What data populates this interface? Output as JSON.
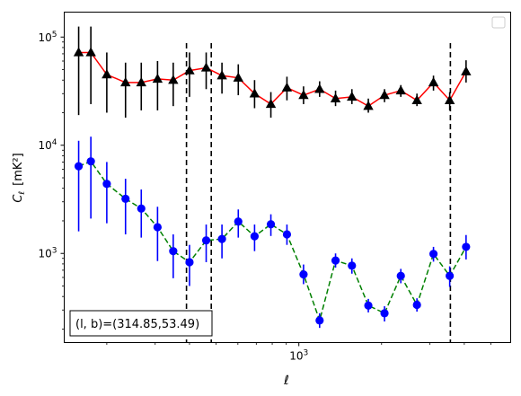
{
  "chart_data": {
    "type": "scatter",
    "xscale": "log",
    "yscale": "log",
    "xlim": [
      140,
      5900
    ],
    "ylim": [
      150,
      170000
    ],
    "xlabel": "ℓ",
    "ylabel_main": "C",
    "ylabel_sub": "ℓ",
    "ylabel_unit": "[mK²]",
    "x_ticks": [
      {
        "value": 1000,
        "base": "10",
        "exp": "3"
      }
    ],
    "y_ticks": [
      {
        "value": 1000,
        "base": "10",
        "exp": "3"
      },
      {
        "value": 10000,
        "base": "10",
        "exp": "4"
      },
      {
        "value": 100000,
        "base": "10",
        "exp": "5"
      }
    ],
    "vlines": [
      390,
      480,
      3560
    ],
    "annotation": "(l, b)=(314.85,53.49)",
    "series": [
      {
        "marker": "triangle",
        "color": "#000000",
        "line_color": "#ff0000",
        "line_style": "solid",
        "points": [
          {
            "x": 158,
            "y": 72000,
            "lo": 19000,
            "hi": 125000
          },
          {
            "x": 175,
            "y": 72000,
            "lo": 24000,
            "hi": 125000
          },
          {
            "x": 200,
            "y": 45000,
            "lo": 20000,
            "hi": 72000
          },
          {
            "x": 234,
            "y": 38000,
            "lo": 18000,
            "hi": 58000
          },
          {
            "x": 267,
            "y": 38000,
            "lo": 21000,
            "hi": 58000
          },
          {
            "x": 306,
            "y": 41000,
            "lo": 21000,
            "hi": 60000
          },
          {
            "x": 349,
            "y": 40000,
            "lo": 23000,
            "hi": 58000
          },
          {
            "x": 400,
            "y": 49000,
            "lo": 28000,
            "hi": 72000
          },
          {
            "x": 460,
            "y": 52000,
            "lo": 33000,
            "hi": 72000
          },
          {
            "x": 525,
            "y": 44000,
            "lo": 30000,
            "hi": 58000
          },
          {
            "x": 602,
            "y": 42000,
            "lo": 29000,
            "hi": 56000
          },
          {
            "x": 690,
            "y": 30000,
            "lo": 22000,
            "hi": 40000
          },
          {
            "x": 791,
            "y": 24000,
            "lo": 18000,
            "hi": 31000
          },
          {
            "x": 905,
            "y": 34000,
            "lo": 26000,
            "hi": 43000
          },
          {
            "x": 1040,
            "y": 29000,
            "lo": 24000,
            "hi": 35000
          },
          {
            "x": 1190,
            "y": 33000,
            "lo": 28000,
            "hi": 39000
          },
          {
            "x": 1360,
            "y": 27000,
            "lo": 23000,
            "hi": 32000
          },
          {
            "x": 1560,
            "y": 28000,
            "lo": 24000,
            "hi": 33000
          },
          {
            "x": 1790,
            "y": 23000,
            "lo": 20000,
            "hi": 27000
          },
          {
            "x": 2050,
            "y": 29000,
            "lo": 25000,
            "hi": 33000
          },
          {
            "x": 2350,
            "y": 32000,
            "lo": 28000,
            "hi": 36000
          },
          {
            "x": 2690,
            "y": 26000,
            "lo": 23000,
            "hi": 30000
          },
          {
            "x": 3090,
            "y": 38000,
            "lo": 32000,
            "hi": 44000
          },
          {
            "x": 3540,
            "y": 26000,
            "lo": 21000,
            "hi": 31000
          },
          {
            "x": 4060,
            "y": 48000,
            "lo": 38000,
            "hi": 61000
          }
        ]
      },
      {
        "marker": "circle",
        "color": "#0000ff",
        "line_color": "#008000",
        "line_style": "dashed",
        "points": [
          {
            "x": 158,
            "y": 6400,
            "lo": 1600,
            "hi": 11000
          },
          {
            "x": 175,
            "y": 7100,
            "lo": 2100,
            "hi": 12000
          },
          {
            "x": 200,
            "y": 4400,
            "lo": 1900,
            "hi": 7000
          },
          {
            "x": 234,
            "y": 3200,
            "lo": 1500,
            "hi": 4900
          },
          {
            "x": 267,
            "y": 2600,
            "lo": 1400,
            "hi": 3900
          },
          {
            "x": 306,
            "y": 1750,
            "lo": 850,
            "hi": 2700
          },
          {
            "x": 349,
            "y": 1050,
            "lo": 590,
            "hi": 1500
          },
          {
            "x": 400,
            "y": 830,
            "lo": 500,
            "hi": 1200
          },
          {
            "x": 460,
            "y": 1320,
            "lo": 830,
            "hi": 1850
          },
          {
            "x": 525,
            "y": 1360,
            "lo": 900,
            "hi": 1850
          },
          {
            "x": 602,
            "y": 1970,
            "lo": 1400,
            "hi": 2550
          },
          {
            "x": 690,
            "y": 1440,
            "lo": 1050,
            "hi": 1850
          },
          {
            "x": 791,
            "y": 1860,
            "lo": 1450,
            "hi": 2300
          },
          {
            "x": 905,
            "y": 1500,
            "lo": 1200,
            "hi": 1850
          },
          {
            "x": 1040,
            "y": 640,
            "lo": 520,
            "hi": 790
          },
          {
            "x": 1190,
            "y": 240,
            "lo": 205,
            "hi": 280
          },
          {
            "x": 1360,
            "y": 860,
            "lo": 740,
            "hi": 1000
          },
          {
            "x": 1560,
            "y": 770,
            "lo": 650,
            "hi": 900
          },
          {
            "x": 1790,
            "y": 330,
            "lo": 285,
            "hi": 380
          },
          {
            "x": 2050,
            "y": 280,
            "lo": 235,
            "hi": 325
          },
          {
            "x": 2350,
            "y": 620,
            "lo": 530,
            "hi": 720
          },
          {
            "x": 2690,
            "y": 335,
            "lo": 290,
            "hi": 385
          },
          {
            "x": 3090,
            "y": 990,
            "lo": 840,
            "hi": 1150
          },
          {
            "x": 3540,
            "y": 620,
            "lo": 490,
            "hi": 760
          },
          {
            "x": 4060,
            "y": 1150,
            "lo": 880,
            "hi": 1480
          }
        ]
      }
    ]
  }
}
